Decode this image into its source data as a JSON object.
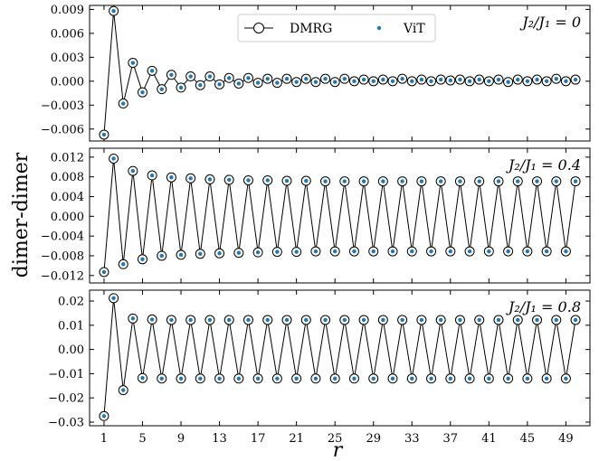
{
  "chart_data": [
    {
      "type": "line",
      "annotation": "J₂/J₁ = 0",
      "ylim": [
        -0.0075,
        0.0095
      ],
      "yticks": [
        -0.006,
        -0.003,
        0.0,
        0.003,
        0.006,
        0.009
      ],
      "ytick_labels": [
        "−0.006",
        "−0.003",
        "0.000",
        "0.003",
        "0.006",
        "0.009"
      ],
      "legend": {
        "position": "top-center",
        "entries": [
          "DMRG",
          "ViT"
        ]
      },
      "x": [
        1,
        2,
        3,
        4,
        5,
        6,
        7,
        8,
        9,
        10,
        11,
        12,
        13,
        14,
        15,
        16,
        17,
        18,
        19,
        20,
        21,
        22,
        23,
        24,
        25,
        26,
        27,
        28,
        29,
        30,
        31,
        32,
        33,
        34,
        35,
        36,
        37,
        38,
        39,
        40,
        41,
        42,
        43,
        44,
        45,
        46,
        47,
        48,
        49,
        50
      ],
      "series": [
        {
          "name": "DMRG",
          "values": [
            -0.0067,
            0.0088,
            -0.0028,
            0.0023,
            -0.0014,
            0.0013,
            -0.001,
            0.0008,
            -0.0008,
            0.0006,
            -0.0005,
            0.0006,
            -0.0004,
            0.0004,
            -0.0003,
            0.0004,
            -0.0002,
            0.0003,
            -0.0002,
            0.0003,
            -0.0001,
            0.0003,
            -0.0001,
            0.0003,
            -0.0001,
            0.0003,
            0.0,
            0.0002,
            0.0,
            0.0002,
            0.0,
            0.0003,
            0.0,
            0.0002,
            0.0,
            0.0002,
            0.0001,
            0.0002,
            0.0,
            0.0002,
            0.0,
            0.0002,
            -0.0001,
            0.0002,
            0.0,
            0.0002,
            0.0,
            0.0003,
            0.0,
            0.0002
          ]
        },
        {
          "name": "ViT",
          "values": [
            -0.0067,
            0.0088,
            -0.0028,
            0.0023,
            -0.0014,
            0.0013,
            -0.001,
            0.0008,
            -0.0008,
            0.0006,
            -0.0005,
            0.0006,
            -0.0004,
            0.0004,
            -0.0003,
            0.0004,
            -0.0002,
            0.0003,
            -0.0002,
            0.0003,
            -0.0001,
            0.0003,
            -0.0001,
            0.0003,
            -0.0001,
            0.0003,
            0.0,
            0.0002,
            0.0,
            0.0002,
            0.0,
            0.0003,
            0.0,
            0.0002,
            0.0,
            0.0002,
            0.0001,
            0.0002,
            0.0,
            0.0002,
            0.0,
            0.0002,
            -0.0001,
            0.0002,
            0.0,
            0.0002,
            0.0,
            0.0003,
            0.0,
            0.0002
          ]
        }
      ]
    },
    {
      "type": "line",
      "annotation": "J₂/J₁ = 0.4",
      "ylim": [
        -0.0135,
        0.0138
      ],
      "yticks": [
        -0.012,
        -0.008,
        -0.004,
        0.0,
        0.004,
        0.008,
        0.012
      ],
      "ytick_labels": [
        "−0.012",
        "−0.008",
        "−0.004",
        "0.000",
        "0.004",
        "0.008",
        "0.012"
      ],
      "x": [
        1,
        2,
        3,
        4,
        5,
        6,
        7,
        8,
        9,
        10,
        11,
        12,
        13,
        14,
        15,
        16,
        17,
        18,
        19,
        20,
        21,
        22,
        23,
        24,
        25,
        26,
        27,
        28,
        29,
        30,
        31,
        32,
        33,
        34,
        35,
        36,
        37,
        38,
        39,
        40,
        41,
        42,
        43,
        44,
        45,
        46,
        47,
        48,
        49,
        50
      ],
      "series": [
        {
          "name": "DMRG",
          "values": [
            -0.0113,
            0.0117,
            -0.0097,
            0.0092,
            -0.0087,
            0.0083,
            -0.008,
            0.0079,
            -0.0078,
            0.0077,
            -0.0076,
            0.0075,
            -0.0075,
            0.0074,
            -0.0074,
            0.0073,
            -0.0073,
            0.0073,
            -0.0072,
            0.0072,
            -0.0072,
            0.0072,
            -0.0071,
            0.0071,
            -0.0071,
            0.0071,
            -0.0071,
            0.0071,
            -0.0071,
            0.0071,
            -0.0071,
            0.0071,
            -0.0071,
            0.0071,
            -0.0071,
            0.0071,
            -0.0071,
            0.0071,
            -0.0071,
            0.0071,
            -0.0071,
            0.0071,
            -0.0071,
            0.0071,
            -0.0071,
            0.0071,
            -0.0071,
            0.0071,
            -0.0071,
            0.0071
          ]
        },
        {
          "name": "ViT",
          "values": [
            -0.0113,
            0.0117,
            -0.0097,
            0.0092,
            -0.0087,
            0.0083,
            -0.008,
            0.0079,
            -0.0078,
            0.0077,
            -0.0076,
            0.0075,
            -0.0075,
            0.0074,
            -0.0074,
            0.0073,
            -0.0073,
            0.0073,
            -0.0072,
            0.0072,
            -0.0072,
            0.0072,
            -0.0071,
            0.0071,
            -0.0071,
            0.0071,
            -0.0071,
            0.0071,
            -0.0071,
            0.0071,
            -0.0071,
            0.0071,
            -0.0071,
            0.0071,
            -0.0071,
            0.0071,
            -0.0071,
            0.0071,
            -0.0071,
            0.0071,
            -0.0071,
            0.0071,
            -0.0071,
            0.0071,
            -0.0071,
            0.0071,
            -0.0071,
            0.0071,
            -0.0071,
            0.0071
          ]
        }
      ]
    },
    {
      "type": "line",
      "annotation": "J₂/J₁ = 0.8",
      "xlabel": "r",
      "xticks": [
        1,
        5,
        9,
        13,
        17,
        21,
        25,
        29,
        33,
        37,
        41,
        45,
        49
      ],
      "ylim": [
        -0.0315,
        0.0245
      ],
      "yticks": [
        -0.03,
        -0.02,
        -0.01,
        0.0,
        0.01,
        0.02
      ],
      "ytick_labels": [
        "−0.03",
        "−0.02",
        "−0.01",
        "0.00",
        "0.01",
        "0.02"
      ],
      "x": [
        1,
        2,
        3,
        4,
        5,
        6,
        7,
        8,
        9,
        10,
        11,
        12,
        13,
        14,
        15,
        16,
        17,
        18,
        19,
        20,
        21,
        22,
        23,
        24,
        25,
        26,
        27,
        28,
        29,
        30,
        31,
        32,
        33,
        34,
        35,
        36,
        37,
        38,
        39,
        40,
        41,
        42,
        43,
        44,
        45,
        46,
        47,
        48,
        49,
        50
      ],
      "series": [
        {
          "name": "DMRG",
          "values": [
            -0.0275,
            0.0212,
            -0.0168,
            0.0128,
            -0.0118,
            0.0124,
            -0.012,
            0.0122,
            -0.012,
            0.0122,
            -0.012,
            0.0122,
            -0.012,
            0.0122,
            -0.012,
            0.0122,
            -0.012,
            0.0122,
            -0.012,
            0.0122,
            -0.012,
            0.0122,
            -0.012,
            0.0122,
            -0.012,
            0.0122,
            -0.012,
            0.0122,
            -0.012,
            0.0122,
            -0.012,
            0.0122,
            -0.012,
            0.0122,
            -0.012,
            0.0122,
            -0.012,
            0.0122,
            -0.012,
            0.0122,
            -0.012,
            0.0122,
            -0.012,
            0.0122,
            -0.012,
            0.0122,
            -0.012,
            0.0122,
            -0.012,
            0.0122
          ]
        },
        {
          "name": "ViT",
          "values": [
            -0.0275,
            0.0212,
            -0.0168,
            0.0128,
            -0.0118,
            0.0124,
            -0.012,
            0.0122,
            -0.012,
            0.0122,
            -0.012,
            0.0122,
            -0.012,
            0.0122,
            -0.012,
            0.0122,
            -0.012,
            0.0122,
            -0.012,
            0.0122,
            -0.012,
            0.0122,
            -0.012,
            0.0122,
            -0.012,
            0.0122,
            -0.012,
            0.0122,
            -0.012,
            0.0122,
            -0.012,
            0.0122,
            -0.012,
            0.0122,
            -0.012,
            0.0122,
            -0.012,
            0.0122,
            -0.012,
            0.0122,
            -0.012,
            0.0122,
            -0.012,
            0.0122,
            -0.012,
            0.0122,
            -0.012,
            0.0122,
            -0.012,
            0.0122
          ]
        }
      ]
    }
  ],
  "ylabel": "dimer-dimer",
  "xlabel": "r",
  "xlim": [
    -0.5,
    51.5
  ],
  "colors": {
    "dmrg_line": "#000000",
    "dmrg_marker_fill": "#ffffff",
    "vit_marker": "#1f77b4"
  }
}
